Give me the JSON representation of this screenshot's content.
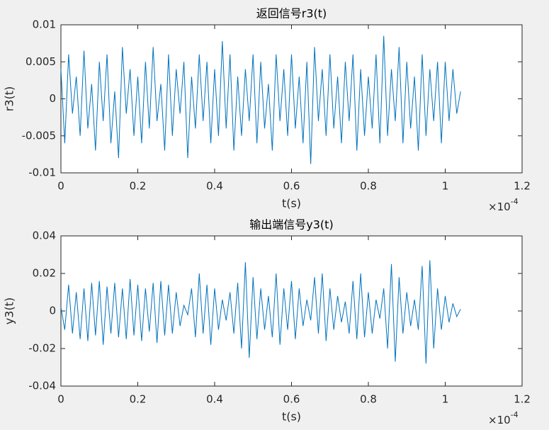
{
  "chart_data": [
    {
      "type": "line",
      "title": "返回信号r3(t)",
      "xlabel": "t(s)",
      "ylabel": "r3(t)",
      "x_exponent": {
        "base": "×10",
        "power": "-4"
      },
      "color": "#0072bd",
      "xlim": [
        0,
        1.2
      ],
      "xticks": [
        0,
        0.2,
        0.4,
        0.6,
        0.8,
        1,
        1.2
      ],
      "ylim": [
        -0.01,
        0.01
      ],
      "yticks": [
        -0.01,
        -0.005,
        0,
        0.005,
        0.01
      ],
      "x": [
        0,
        0.01,
        0.02,
        0.03,
        0.04,
        0.05,
        0.06,
        0.07,
        0.08,
        0.09,
        0.1,
        0.11,
        0.12,
        0.13,
        0.14,
        0.15,
        0.16,
        0.17,
        0.18,
        0.19,
        0.2,
        0.21,
        0.22,
        0.23,
        0.24,
        0.25,
        0.26,
        0.27,
        0.28,
        0.29,
        0.3,
        0.31,
        0.32,
        0.33,
        0.34,
        0.35,
        0.36,
        0.37,
        0.38,
        0.39,
        0.4,
        0.41,
        0.42,
        0.43,
        0.44,
        0.45,
        0.46,
        0.47,
        0.48,
        0.49,
        0.5,
        0.51,
        0.52,
        0.53,
        0.54,
        0.55,
        0.56,
        0.57,
        0.58,
        0.59,
        0.6,
        0.61,
        0.62,
        0.63,
        0.64,
        0.65,
        0.66,
        0.67,
        0.68,
        0.69,
        0.7,
        0.71,
        0.72,
        0.73,
        0.74,
        0.75,
        0.76,
        0.77,
        0.78,
        0.79,
        0.8,
        0.81,
        0.82,
        0.83,
        0.84,
        0.85,
        0.86,
        0.87,
        0.88,
        0.89,
        0.9,
        0.91,
        0.92,
        0.93,
        0.94,
        0.95,
        0.96,
        0.97,
        0.98,
        0.99,
        1,
        1.01,
        1.02,
        1.03,
        1.04
      ],
      "values": [
        0.004,
        -0.006,
        0.006,
        -0.002,
        0.003,
        -0.005,
        0.0065,
        -0.004,
        0.002,
        -0.007,
        0.005,
        -0.003,
        0.006,
        -0.006,
        0.001,
        -0.008,
        0.007,
        -0.002,
        0.004,
        -0.005,
        0.003,
        -0.006,
        0.005,
        -0.004,
        0.007,
        -0.003,
        0.002,
        -0.007,
        0.006,
        -0.005,
        0.004,
        -0.002,
        0.005,
        -0.008,
        0.003,
        -0.004,
        0.006,
        -0.003,
        0.005,
        -0.006,
        0.004,
        -0.005,
        0.0078,
        -0.004,
        0.006,
        -0.007,
        0.003,
        -0.005,
        0.004,
        -0.003,
        0.006,
        -0.006,
        0.005,
        -0.004,
        0.002,
        -0.007,
        0.006,
        -0.003,
        0.004,
        -0.005,
        0.006,
        -0.004,
        0.003,
        -0.006,
        0.005,
        -0.0088,
        0.007,
        -0.003,
        0.004,
        -0.005,
        0.006,
        -0.004,
        0.003,
        -0.006,
        0.005,
        -0.003,
        0.006,
        -0.007,
        0.004,
        -0.005,
        0.003,
        -0.004,
        0.006,
        -0.006,
        0.0085,
        -0.005,
        0.004,
        -0.003,
        0.007,
        -0.006,
        0.005,
        -0.004,
        0.003,
        -0.007,
        0.006,
        -0.005,
        0.004,
        -0.003,
        0.005,
        -0.006,
        0.005,
        -0.003,
        0.004,
        -0.002,
        0.001
      ]
    },
    {
      "type": "line",
      "title": "输出端信号y3(t)",
      "xlabel": "t(s)",
      "ylabel": "y3(t)",
      "x_exponent": {
        "base": "×10",
        "power": "-4"
      },
      "color": "#0072bd",
      "xlim": [
        0,
        1.2
      ],
      "xticks": [
        0,
        0.2,
        0.4,
        0.6,
        0.8,
        1,
        1.2
      ],
      "ylim": [
        -0.04,
        0.04
      ],
      "yticks": [
        -0.04,
        -0.02,
        0,
        0.02,
        0.04
      ],
      "x": [
        0,
        0.01,
        0.02,
        0.03,
        0.04,
        0.05,
        0.06,
        0.07,
        0.08,
        0.09,
        0.1,
        0.11,
        0.12,
        0.13,
        0.14,
        0.15,
        0.16,
        0.17,
        0.18,
        0.19,
        0.2,
        0.21,
        0.22,
        0.23,
        0.24,
        0.25,
        0.26,
        0.27,
        0.28,
        0.29,
        0.3,
        0.31,
        0.32,
        0.33,
        0.34,
        0.35,
        0.36,
        0.37,
        0.38,
        0.39,
        0.4,
        0.41,
        0.42,
        0.43,
        0.44,
        0.45,
        0.46,
        0.47,
        0.48,
        0.49,
        0.5,
        0.51,
        0.52,
        0.53,
        0.54,
        0.55,
        0.56,
        0.57,
        0.58,
        0.59,
        0.6,
        0.61,
        0.62,
        0.63,
        0.64,
        0.65,
        0.66,
        0.67,
        0.68,
        0.69,
        0.7,
        0.71,
        0.72,
        0.73,
        0.74,
        0.75,
        0.76,
        0.77,
        0.78,
        0.79,
        0.8,
        0.81,
        0.82,
        0.83,
        0.84,
        0.85,
        0.86,
        0.87,
        0.88,
        0.89,
        0.9,
        0.91,
        0.92,
        0.93,
        0.94,
        0.95,
        0.96,
        0.97,
        0.98,
        0.99,
        1,
        1.01,
        1.02,
        1.03,
        1.04
      ],
      "values": [
        0.002,
        -0.01,
        0.014,
        -0.012,
        0.01,
        -0.015,
        0.012,
        -0.016,
        0.015,
        -0.013,
        0.016,
        -0.018,
        0.013,
        -0.012,
        0.015,
        -0.014,
        0.012,
        -0.015,
        0.017,
        -0.013,
        0.014,
        -0.016,
        0.012,
        -0.011,
        0.015,
        -0.017,
        0.016,
        -0.013,
        0.014,
        -0.012,
        0.01,
        -0.008,
        0.003,
        -0.002,
        0.012,
        -0.014,
        0.02,
        -0.012,
        0.014,
        -0.018,
        0.012,
        -0.01,
        0.006,
        -0.005,
        0.01,
        -0.012,
        0.015,
        -0.02,
        0.026,
        -0.025,
        0.018,
        -0.015,
        0.012,
        -0.01,
        0.008,
        -0.014,
        0.02,
        -0.018,
        0.012,
        -0.01,
        0.016,
        -0.015,
        0.012,
        -0.008,
        0.006,
        -0.005,
        0.018,
        -0.012,
        0.02,
        -0.016,
        0.012,
        -0.01,
        0.008,
        -0.006,
        0.005,
        -0.012,
        0.016,
        -0.015,
        0.02,
        -0.014,
        0.01,
        -0.012,
        0.006,
        -0.004,
        0.012,
        -0.02,
        0.025,
        -0.027,
        0.018,
        -0.012,
        0.01,
        -0.008,
        0.006,
        -0.01,
        0.024,
        -0.028,
        0.027,
        -0.02,
        0.012,
        -0.01,
        0.008,
        -0.006,
        0.004,
        -0.003,
        0.001
      ]
    }
  ]
}
